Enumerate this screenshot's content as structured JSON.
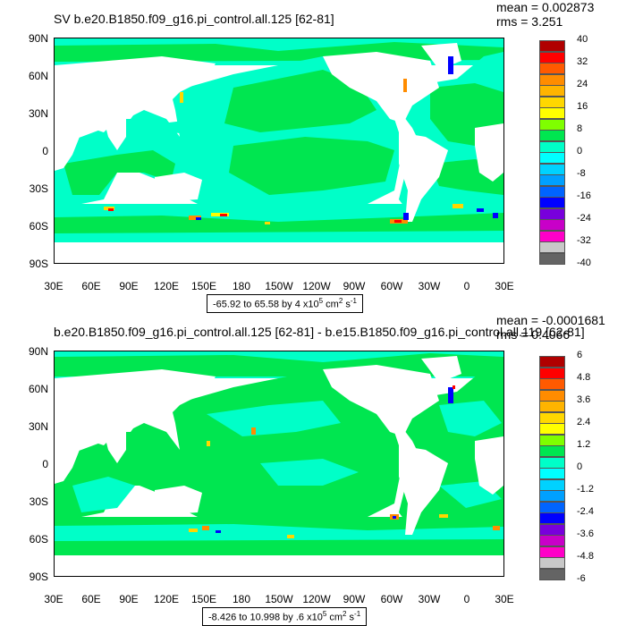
{
  "panels": [
    {
      "title": "SV b.e20.B1850.f09_g16.pi_control.all.125 [62-81]",
      "mean": "mean = 0.002873",
      "rms": "rms = 3.251",
      "caption_range": "-65.92 to 65.58 by 4 x10",
      "caption_exp": "5",
      "caption_units": " cm",
      "caption_units_exp": "2",
      "caption_s": " s",
      "caption_s_exp": "-1",
      "colorbar_labels": [
        "40",
        "32",
        "24",
        "16",
        "8",
        "0",
        "-8",
        "-16",
        "-24",
        "-32",
        "-40"
      ]
    },
    {
      "title": "b.e20.B1850.f09_g16.pi_control.all.125 [62-81] - b.e15.B1850.f09_g16.pi_control.all.119 [62-81]",
      "mean": "mean = -0.0001681",
      "rms": "rms = 0.4066",
      "caption_range": "-8.426 to 10.998 by .6 x10",
      "caption_exp": "5",
      "caption_units": " cm",
      "caption_units_exp": "2",
      "caption_s": " s",
      "caption_s_exp": "-1",
      "colorbar_labels": [
        "6",
        "4.8",
        "3.6",
        "2.4",
        "1.2",
        "0",
        "-1.2",
        "-2.4",
        "-3.6",
        "-4.8",
        "-6"
      ]
    }
  ],
  "axes": {
    "lat_ticks": [
      "90N",
      "60N",
      "30N",
      "0",
      "30S",
      "60S",
      "90S"
    ],
    "lon_ticks": [
      "30E",
      "60E",
      "90E",
      "120E",
      "150E",
      "180",
      "150W",
      "120W",
      "90W",
      "60W",
      "30W",
      "0",
      "30E"
    ]
  },
  "colorbar_colors": [
    "#b00000",
    "#ff0000",
    "#ff5a00",
    "#ff8c00",
    "#ffb400",
    "#ffd700",
    "#ffff00",
    "#7fff00",
    "#00e650",
    "#00ffc8",
    "#00ffff",
    "#00d2ff",
    "#00a0ff",
    "#0064ff",
    "#0000ff",
    "#7800dc",
    "#c800c8",
    "#ff00c8",
    "#c8c8c8",
    "#646464"
  ],
  "chart_data": [
    {
      "type": "heatmap",
      "title": "SV b.e20.B1850.f09_g16.pi_control.all.125 [62-81]",
      "xlabel": "",
      "ylabel": "",
      "xlim": [
        "30E",
        "30E"
      ],
      "ylim": [
        "90S",
        "90N"
      ],
      "color_levels": [
        -40,
        -36,
        -32,
        -28,
        -24,
        -20,
        -16,
        -12,
        -8,
        -4,
        0,
        4,
        8,
        12,
        16,
        20,
        24,
        28,
        32,
        36,
        40
      ],
      "mean": 0.002873,
      "rms": 3.251
    },
    {
      "type": "heatmap",
      "title": "b.e20.B1850.f09_g16.pi_control.all.125 [62-81] - b.e15.B1850.f09_g16.pi_control.all.119 [62-81]",
      "xlabel": "",
      "ylabel": "",
      "xlim": [
        "30E",
        "30E"
      ],
      "ylim": [
        "90S",
        "90N"
      ],
      "color_levels": [
        -6,
        -5.4,
        -4.8,
        -4.2,
        -3.6,
        -3.0,
        -2.4,
        -1.8,
        -1.2,
        -0.6,
        0,
        0.6,
        1.2,
        1.8,
        2.4,
        3.0,
        3.6,
        4.2,
        4.8,
        5.4,
        6
      ],
      "mean": -0.0001681,
      "rms": 0.4066
    }
  ]
}
